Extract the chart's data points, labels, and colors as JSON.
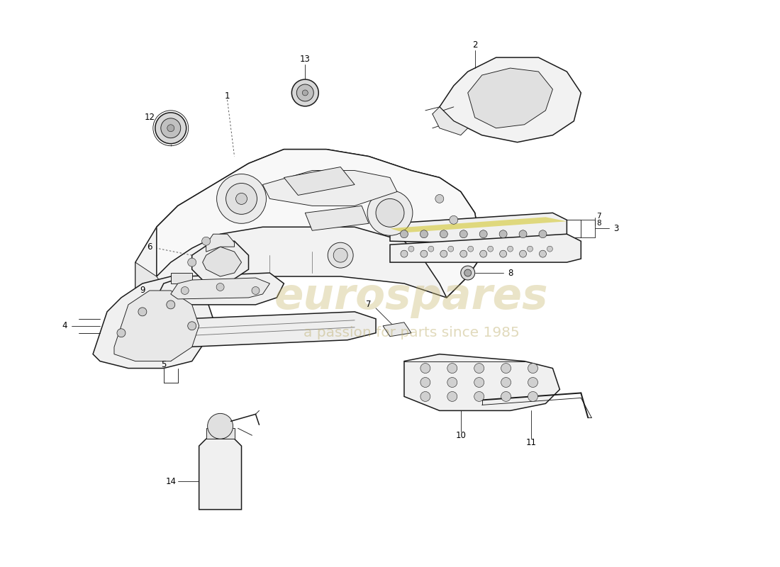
{
  "bg_color": "#ffffff",
  "line_color": "#1a1a1a",
  "watermark_color1": "#c8b870",
  "watermark_color2": "#b8a860",
  "lw_main": 1.1,
  "lw_thin": 0.65,
  "lw_leader": 0.6,
  "part_fill": "#f5f5f5",
  "part_fill2": "#ebebeb",
  "highlight_yellow": "#d4c830",
  "label_fs": 8.5
}
